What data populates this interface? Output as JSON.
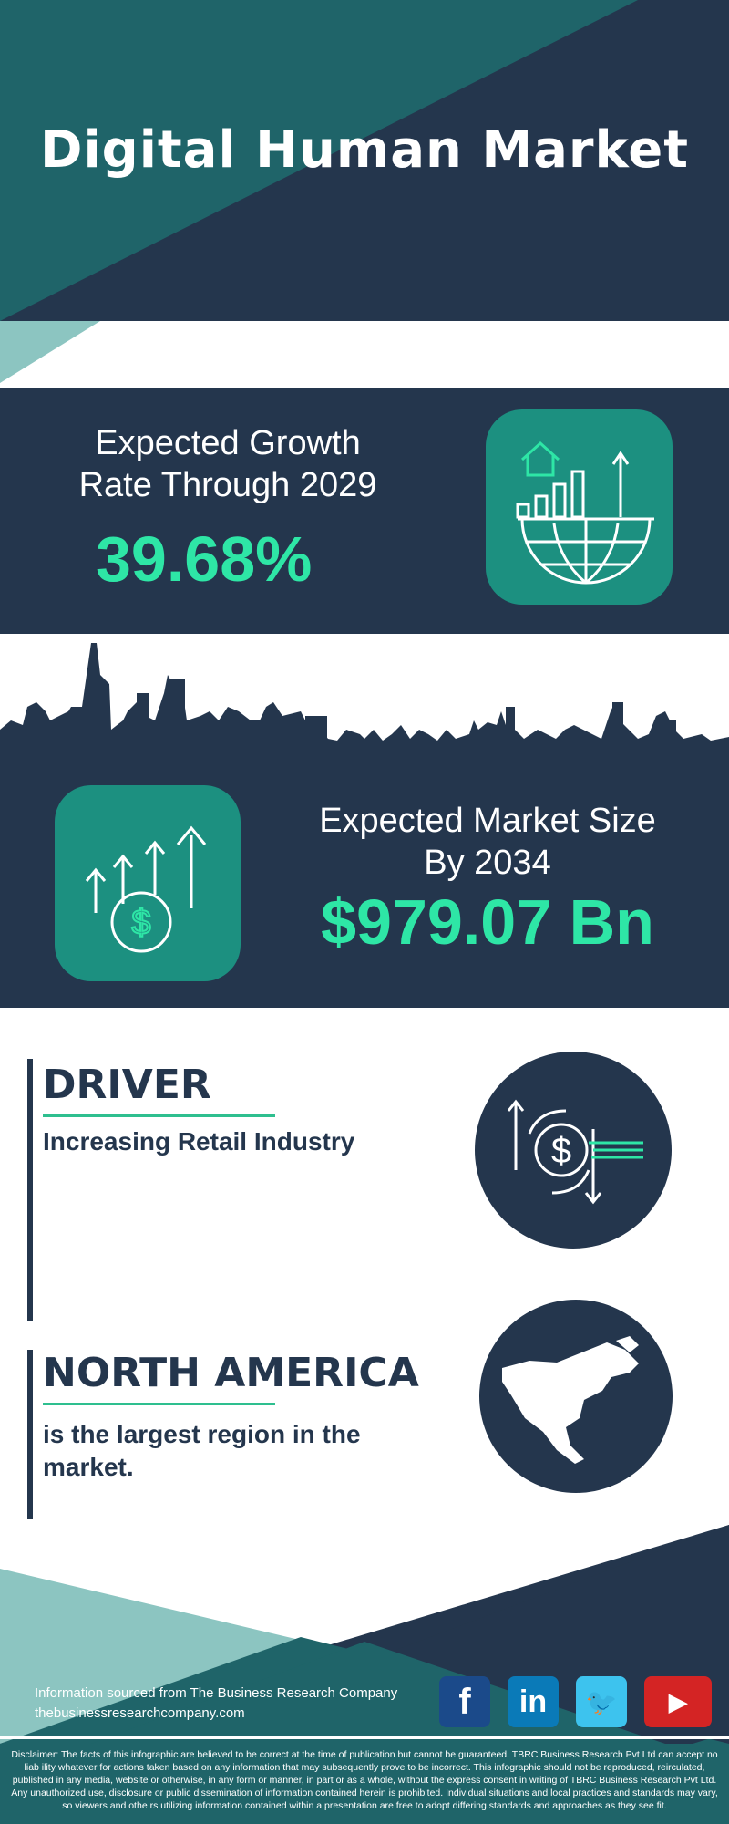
{
  "title": "Digital Human Market",
  "growth": {
    "label_line1": "Expected Growth",
    "label_line2": "Rate Through 2029",
    "value": "39.68%",
    "icon": "globe-growth-chart-icon"
  },
  "market": {
    "label_line1": "Expected Market Size",
    "label_line2": "By 2034",
    "value": "$979.07 Bn",
    "icon": "money-growth-arrows-icon"
  },
  "driver": {
    "heading": "DRIVER",
    "text": "Increasing Retail Industry",
    "icon": "dollar-exchange-icon"
  },
  "region": {
    "heading": "NORTH AMERICA",
    "text_line1": "is the largest region in the",
    "text_line2": "market.",
    "icon": "north-america-map-icon"
  },
  "footer": {
    "source": "Information sourced from The Business Research Company",
    "website": "thebusinessresearchcompany.com",
    "social": [
      {
        "name": "facebook",
        "glyph": "f",
        "color": "#1b4a8a"
      },
      {
        "name": "linkedin",
        "glyph": "in",
        "color": "#0a7ab8"
      },
      {
        "name": "twitter",
        "glyph": "🐦",
        "color": "#3dc3ee"
      },
      {
        "name": "youtube",
        "glyph": "▶",
        "color": "#d42424"
      }
    ]
  },
  "disclaimer": "Disclaimer: The facts of this infographic are believed to be correct at the time of publication but cannot be guaranteed. TBRC Business Research Pvt Ltd can accept no liab ility whatever for actions taken based on any information that may subsequently prove to be incorrect. This infographic should not be reproduced, reirculated, published in any media, website or otherwise, in any form or manner, in part or as a whole, without the express consent in writing of TBRC Business Research Pvt Ltd. Any unauthorized use, disclosure or public dissemination of information contained herein is prohibited. Individual situations and local practices and standards may vary, so viewers and othe rs utilizing information contained within a presentation are free to adopt differing standards and approaches as they see fit.",
  "colors": {
    "teal": "#1f6469",
    "navy": "#24364d",
    "light_teal": "#8cc5c1",
    "accent": "#2ee6a6",
    "icon_box": "#1c9080"
  }
}
